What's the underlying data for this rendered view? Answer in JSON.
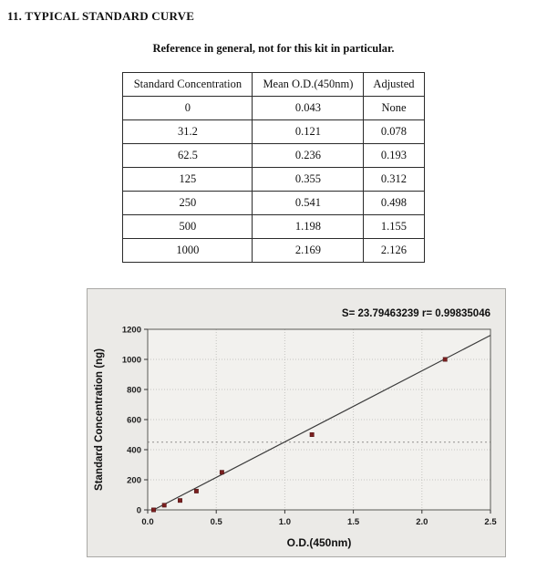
{
  "page": {
    "section_title": "11. TYPICAL STANDARD CURVE",
    "subtitle": "Reference in general, not for this kit in particular."
  },
  "table": {
    "headers": [
      "Standard Concentration",
      "Mean O.D.(450nm)",
      "Adjusted"
    ],
    "rows": [
      [
        "0",
        "0.043",
        "None"
      ],
      [
        "31.2",
        "0.121",
        "0.078"
      ],
      [
        "62.5",
        "0.236",
        "0.193"
      ],
      [
        "125",
        "0.355",
        "0.312"
      ],
      [
        "250",
        "0.541",
        "0.498"
      ],
      [
        "500",
        "1.198",
        "1.155"
      ],
      [
        "1000",
        "2.169",
        "2.126"
      ]
    ]
  },
  "chart_data": {
    "type": "scatter",
    "title": "",
    "annotation": "S= 23.79463239  r= 0.99835046",
    "s_value": "23.79463239",
    "r_value": "0.99835046",
    "xlabel": "O.D.(450nm)",
    "ylabel": "Standard Concentration (ng)",
    "xlim": [
      0,
      2.5
    ],
    "ylim": [
      0,
      1200
    ],
    "x_ticks": [
      0,
      0.5,
      1,
      1.5,
      2,
      2.5
    ],
    "y_ticks": [
      0,
      200,
      400,
      600,
      800,
      1000,
      1200
    ],
    "points": [
      [
        0.043,
        0
      ],
      [
        0.121,
        31.2
      ],
      [
        0.236,
        62.5
      ],
      [
        0.355,
        125
      ],
      [
        0.541,
        250
      ],
      [
        1.198,
        500
      ],
      [
        2.169,
        1000
      ]
    ],
    "fit_line": {
      "x1": 0.043,
      "y1": 0,
      "x2": 2.5,
      "y2": 1160
    },
    "reference_line_y": 450,
    "grid": true,
    "legend": "none",
    "point_color": "#7b1f1f",
    "line_color": "#3a3a3a",
    "bg_color": "#ebeae7"
  }
}
